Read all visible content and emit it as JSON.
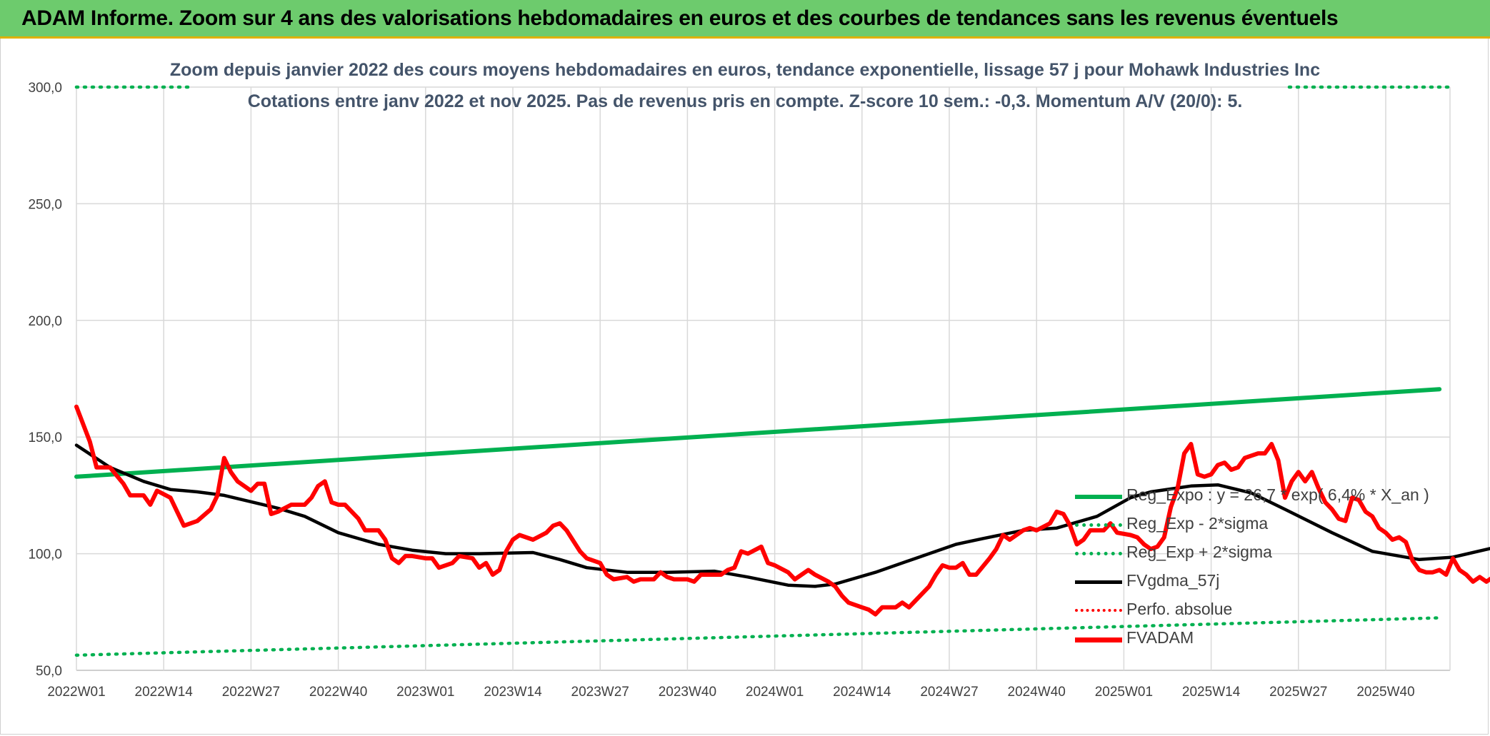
{
  "banner": {
    "title": "ADAM Informe. Zoom sur 4 ans des valorisations hebdomadaires en euros et des courbes de tendances sans les revenus éventuels"
  },
  "chart_data": {
    "type": "line",
    "title": "Zoom depuis janvier 2022 des cours moyens hebdomadaires en euros, tendance exponentielle, lissage 57 j pour Mohawk Industries Inc",
    "subtitle": "Cotations entre janv 2022 et nov 2025. Pas de revenus pris en compte. Z-score 10 sem.: -0,3. Momentum A/V (20/0): 5.",
    "xlabel": "",
    "ylabel": "",
    "ylim": [
      50,
      300
    ],
    "y_ticks": [
      "50,0",
      "100,0",
      "150,0",
      "200,0",
      "250,0",
      "300,0"
    ],
    "x_ticks": [
      "2022W01",
      "2022W14",
      "2022W27",
      "2022W40",
      "2023W01",
      "2023W14",
      "2023W27",
      "2023W40",
      "2024W01",
      "2024W14",
      "2024W27",
      "2024W40",
      "2025W01",
      "2025W14",
      "2025W27",
      "2025W40"
    ],
    "grid": true,
    "legend_position": "right",
    "n_weeks": 204,
    "series": [
      {
        "name": "Reg_Expo : y = 26,7 * exp( 6,4% *  X_an )",
        "color": "#00b050",
        "style": "solid",
        "points": [
          [
            0,
            133
          ],
          [
            203,
            170.5
          ]
        ]
      },
      {
        "name": "Reg_Exp - 2*sigma",
        "color": "#00b050",
        "style": "dotted",
        "points": [
          [
            0,
            56.5
          ],
          [
            203,
            72.5
          ]
        ]
      },
      {
        "name": "Reg_Exp + 2*sigma",
        "color": "#00b050",
        "style": "dotted",
        "points": [
          [
            0,
            300
          ],
          [
            203,
            300
          ]
        ]
      },
      {
        "name": "FVgdma_57j",
        "color": "#000000",
        "style": "solid",
        "points": [
          [
            0,
            146.5
          ],
          [
            5,
            137
          ],
          [
            10,
            131
          ],
          [
            14,
            127.5
          ],
          [
            18,
            126.5
          ],
          [
            22,
            125
          ],
          [
            30,
            119.5
          ],
          [
            34,
            116
          ],
          [
            39,
            109
          ],
          [
            45,
            104
          ],
          [
            50,
            101.5
          ],
          [
            55,
            100
          ],
          [
            60,
            100
          ],
          [
            68,
            100.5
          ],
          [
            72,
            97.5
          ],
          [
            76,
            94
          ],
          [
            82,
            92
          ],
          [
            88,
            92
          ],
          [
            95,
            92.5
          ],
          [
            100,
            90
          ],
          [
            106,
            86.5
          ],
          [
            110,
            86
          ],
          [
            113,
            87
          ],
          [
            119,
            92
          ],
          [
            125,
            98
          ],
          [
            131,
            104
          ],
          [
            135,
            106.5
          ],
          [
            141,
            110
          ],
          [
            146,
            111
          ],
          [
            152,
            116
          ],
          [
            157,
            124
          ],
          [
            160,
            126.5
          ],
          [
            166,
            129
          ],
          [
            170,
            129.5
          ],
          [
            175,
            126
          ],
          [
            180,
            119
          ],
          [
            187,
            109
          ],
          [
            193,
            101
          ],
          [
            200,
            97.5
          ],
          [
            205,
            98.5
          ],
          [
            211,
            102.5
          ],
          [
            216,
            105
          ],
          [
            220,
            104.5
          ],
          [
            225,
            103
          ],
          [
            230,
            100
          ],
          [
            233,
            100
          ]
        ]
      },
      {
        "name": "Perfo. absolue",
        "color": "#ff0000",
        "style": "dotted",
        "points": []
      },
      {
        "name": "FVADAM",
        "color": "#ff0000",
        "style": "solid",
        "points": [
          [
            0,
            163
          ],
          [
            2,
            148
          ],
          [
            3,
            137
          ],
          [
            5,
            137
          ],
          [
            7,
            130
          ],
          [
            8,
            125
          ],
          [
            10,
            125
          ],
          [
            11,
            121
          ],
          [
            12,
            127
          ],
          [
            14,
            124
          ],
          [
            15,
            118
          ],
          [
            16,
            112
          ],
          [
            18,
            114
          ],
          [
            20,
            119
          ],
          [
            21,
            125
          ],
          [
            22,
            141
          ],
          [
            23,
            135
          ],
          [
            24,
            131
          ],
          [
            26,
            127
          ],
          [
            27,
            130
          ],
          [
            28,
            130
          ],
          [
            29,
            117
          ],
          [
            30,
            118
          ],
          [
            32,
            121
          ],
          [
            34,
            121
          ],
          [
            35,
            124
          ],
          [
            36,
            129
          ],
          [
            37,
            131
          ],
          [
            38,
            122
          ],
          [
            39,
            121
          ],
          [
            40,
            121
          ],
          [
            42,
            115
          ],
          [
            43,
            110
          ],
          [
            45,
            110
          ],
          [
            46,
            106
          ],
          [
            47,
            98
          ],
          [
            48,
            96
          ],
          [
            49,
            99
          ],
          [
            50,
            99
          ],
          [
            52,
            98
          ],
          [
            53,
            98
          ],
          [
            54,
            94
          ],
          [
            56,
            96
          ],
          [
            57,
            99
          ],
          [
            59,
            98
          ],
          [
            60,
            94
          ],
          [
            61,
            96
          ],
          [
            62,
            91
          ],
          [
            63,
            93
          ],
          [
            64,
            101
          ],
          [
            65,
            106
          ],
          [
            66,
            108
          ],
          [
            68,
            106
          ],
          [
            70,
            109
          ],
          [
            71,
            112
          ],
          [
            72,
            113
          ],
          [
            73,
            110
          ],
          [
            75,
            101
          ],
          [
            76,
            98
          ],
          [
            78,
            96
          ],
          [
            79,
            91
          ],
          [
            80,
            89
          ],
          [
            82,
            90
          ],
          [
            83,
            88
          ],
          [
            84,
            89
          ],
          [
            86,
            89
          ],
          [
            87,
            92
          ],
          [
            88,
            90
          ],
          [
            89,
            89
          ],
          [
            91,
            89
          ],
          [
            92,
            88
          ],
          [
            93,
            91
          ],
          [
            94,
            91
          ],
          [
            96,
            91
          ],
          [
            97,
            93
          ],
          [
            98,
            94
          ],
          [
            99,
            101
          ],
          [
            100,
            100
          ],
          [
            102,
            103
          ],
          [
            103,
            96
          ],
          [
            104,
            95
          ],
          [
            106,
            92
          ],
          [
            107,
            89
          ],
          [
            108,
            91
          ],
          [
            109,
            93
          ],
          [
            110,
            91
          ],
          [
            112,
            88
          ],
          [
            113,
            86
          ],
          [
            114,
            82
          ],
          [
            115,
            79
          ],
          [
            117,
            77
          ],
          [
            118,
            76
          ],
          [
            119,
            74
          ],
          [
            120,
            77
          ],
          [
            122,
            77
          ],
          [
            123,
            79
          ],
          [
            124,
            77
          ],
          [
            125,
            80
          ],
          [
            127,
            86
          ],
          [
            128,
            91
          ],
          [
            129,
            95
          ],
          [
            130,
            94
          ],
          [
            131,
            94
          ],
          [
            132,
            96
          ],
          [
            133,
            91
          ],
          [
            134,
            91
          ],
          [
            136,
            98
          ],
          [
            137,
            102
          ],
          [
            138,
            108
          ],
          [
            139,
            106
          ],
          [
            141,
            110
          ],
          [
            142,
            111
          ],
          [
            143,
            110
          ],
          [
            145,
            113
          ],
          [
            146,
            118
          ],
          [
            147,
            117
          ],
          [
            148,
            112
          ],
          [
            149,
            104
          ],
          [
            150,
            106
          ],
          [
            151,
            110
          ],
          [
            153,
            110
          ],
          [
            154,
            113
          ],
          [
            155,
            109
          ],
          [
            157,
            108
          ],
          [
            158,
            107
          ],
          [
            159,
            104
          ],
          [
            160,
            102
          ],
          [
            161,
            103
          ],
          [
            162,
            107
          ],
          [
            163,
            120
          ],
          [
            164,
            128
          ],
          [
            165,
            143
          ],
          [
            166,
            147
          ],
          [
            167,
            134
          ],
          [
            168,
            133
          ],
          [
            169,
            134
          ],
          [
            170,
            138
          ],
          [
            171,
            139
          ],
          [
            172,
            136
          ],
          [
            173,
            137
          ],
          [
            174,
            141
          ],
          [
            175,
            142
          ],
          [
            176,
            143
          ],
          [
            177,
            143
          ],
          [
            178,
            147
          ],
          [
            179,
            140
          ],
          [
            180,
            124
          ],
          [
            181,
            131
          ],
          [
            182,
            135
          ],
          [
            183,
            131
          ],
          [
            184,
            135
          ],
          [
            185,
            128
          ],
          [
            186,
            122
          ],
          [
            187,
            119
          ],
          [
            188,
            115
          ],
          [
            189,
            114
          ],
          [
            190,
            124
          ],
          [
            191,
            123
          ],
          [
            192,
            118
          ],
          [
            193,
            116
          ],
          [
            194,
            111
          ],
          [
            195,
            109
          ],
          [
            196,
            106
          ],
          [
            197,
            107
          ],
          [
            198,
            105
          ],
          [
            199,
            97
          ],
          [
            200,
            93
          ],
          [
            201,
            92
          ],
          [
            202,
            92
          ],
          [
            203,
            93
          ],
          [
            204,
            91
          ],
          [
            205,
            98
          ],
          [
            206,
            93
          ],
          [
            207,
            91
          ],
          [
            208,
            88
          ],
          [
            209,
            90
          ],
          [
            210,
            88
          ],
          [
            211,
            90
          ],
          [
            212,
            94
          ],
          [
            213,
            95
          ],
          [
            214,
            97
          ],
          [
            215,
            101
          ],
          [
            216,
            105
          ],
          [
            217,
            108
          ],
          [
            218,
            113
          ],
          [
            219,
            115
          ],
          [
            220,
            117
          ],
          [
            221,
            112
          ],
          [
            222,
            108
          ],
          [
            223,
            109
          ],
          [
            224,
            106
          ],
          [
            225,
            110
          ],
          [
            226,
            103
          ],
          [
            227,
            97
          ],
          [
            228,
            95
          ],
          [
            229,
            91
          ],
          [
            230,
            98
          ],
          [
            231,
            98
          ]
        ]
      }
    ]
  },
  "legend": {
    "items": [
      {
        "label": "Reg_Expo : y = 26,7 * exp( 6,4% *  X_an )",
        "color": "#00b050",
        "style": "solid"
      },
      {
        "label": "Reg_Exp - 2*sigma",
        "color": "#00b050",
        "style": "dotted"
      },
      {
        "label": "Reg_Exp + 2*sigma",
        "color": "#00b050",
        "style": "dotted"
      },
      {
        "label": "FVgdma_57j",
        "color": "#000000",
        "style": "solid"
      },
      {
        "label": "Perfo. absolue",
        "color": "#ff0000",
        "style": "dotted"
      },
      {
        "label": "FVADAM",
        "color": "#ff0000",
        "style": "solid"
      }
    ]
  }
}
